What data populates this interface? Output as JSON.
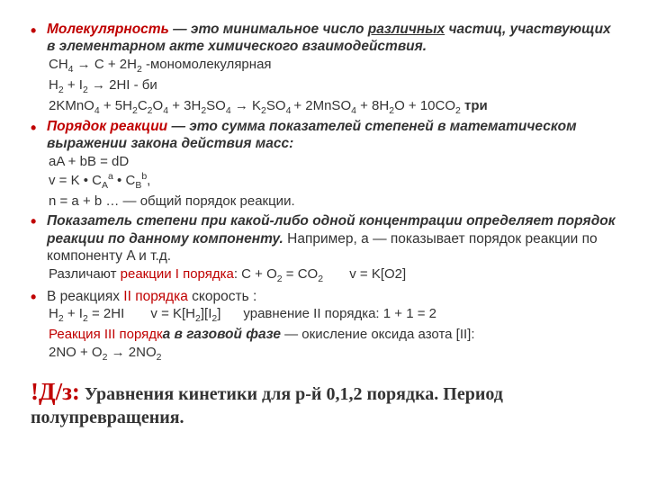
{
  "colors": {
    "accent": "#c00000",
    "text": "#333333",
    "bg": "#ffffff"
  },
  "items": [
    {
      "term": "Молекулярность",
      "def_rest_1": " — это минимальное число ",
      "def_underlined": "различных",
      "def_rest_2": " частиц, участвующих в элементарном акте химического взаимодействия.",
      "lines": [
        "CH₄ → C + 2H₂ -мономолекулярная",
        "H₂ + I₂ → 2HI - би",
        "2KMnO₄ + 5H₂C₂O₄ + 3H₂SO₄ → K₂SO₄ + 2MnSO₄ + 8H₂O + 10CO₂ три"
      ]
    },
    {
      "term": "Порядок реакции",
      "def_rest": " — это сумма показателей степеней в математическом выражении закона действия масс:",
      "lines": [
        "aA + bB = dD",
        "v = K • Cᴬᵃ • Cᴮᵇ,",
        "n = a + b … — общий порядок реакции."
      ]
    },
    {
      "bold_part": "Показатель степени при какой-либо одной концентрации определяет порядок реакции по данному компоненту.",
      "plain_tail": " Например, a — показывает порядок реакции по компоненту A и т.д.",
      "line_prefix": "Различают ",
      "line_red": "реакции I порядка",
      "line_tail": ": C + O₂ = CO₂        v = K[O2]"
    },
    {
      "plain_1a": "В реакциях ",
      "plain_1r": "II порядка",
      "plain_1b": " скорость :",
      "line2": "H₂ + I₂ = 2HI       v = K[H₂][I₂]      уравнение II порядка: 1 + 1 = 2",
      "line3_red": "Реакция III порядк",
      "line3_rest": "а в газовой фазе",
      "line3_plain": " — окисление оксида азота [II]:",
      "line4": "2NO + O₂ → 2NO₂"
    }
  ],
  "hw": {
    "label": "!Д/з:",
    "text": " Уравнения кинетики для р-й 0,1,2 порядка. Период полупревращения."
  }
}
